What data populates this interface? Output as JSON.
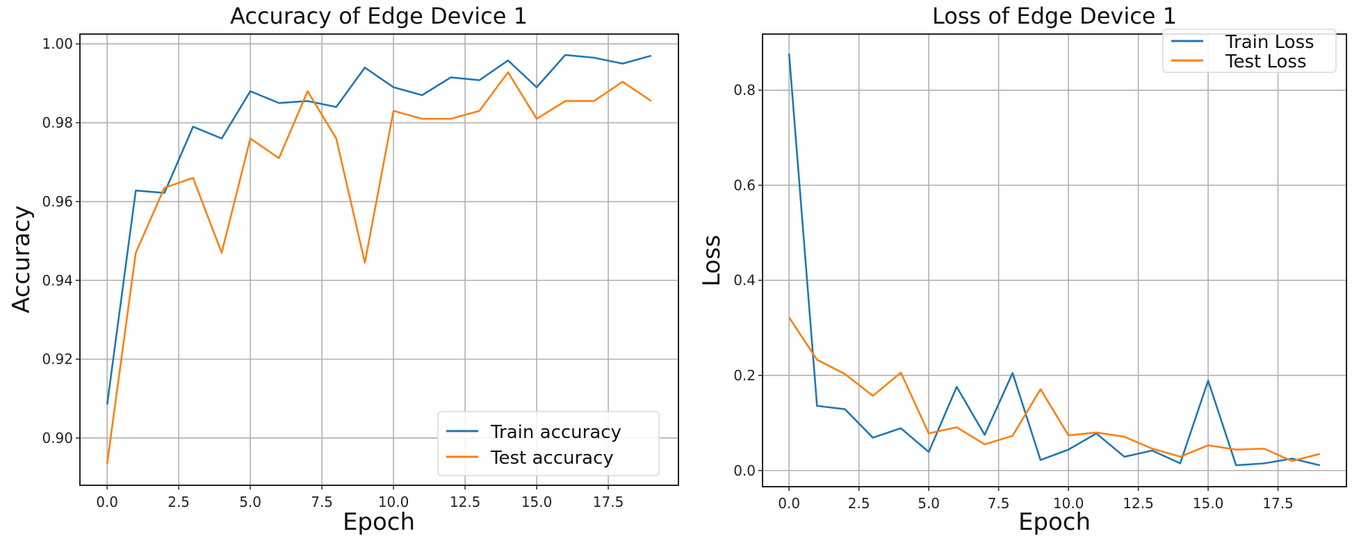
{
  "chart_data": [
    {
      "type": "line",
      "title": "Accuracy of Edge Device 1",
      "xlabel": "Epoch",
      "ylabel": "Accuracy",
      "xlim": [
        -0.95,
        19.95
      ],
      "ylim": [
        0.888,
        1.0025
      ],
      "xticks": [
        0,
        2.5,
        5,
        7.5,
        10,
        12.5,
        15,
        17.5
      ],
      "xtick_labels": [
        "0.0",
        "2.5",
        "5.0",
        "7.5",
        "10.0",
        "12.5",
        "15.0",
        "17.5"
      ],
      "yticks": [
        0.9,
        0.92,
        0.94,
        0.96,
        0.98,
        1.0
      ],
      "ytick_labels": [
        "0.90",
        "0.92",
        "0.94",
        "0.96",
        "0.98",
        "1.00"
      ],
      "grid": true,
      "legend_position": "bottom-right",
      "x": [
        0,
        1,
        2,
        3,
        4,
        5,
        6,
        7,
        8,
        9,
        10,
        11,
        12,
        13,
        14,
        15,
        16,
        17,
        18,
        19
      ],
      "series": [
        {
          "name": "Train accuracy",
          "color": "#1f77b4",
          "values": [
            0.9085,
            0.9628,
            0.9622,
            0.979,
            0.976,
            0.988,
            0.985,
            0.9855,
            0.984,
            0.994,
            0.989,
            0.987,
            0.9915,
            0.9908,
            0.9958,
            0.989,
            0.9972,
            0.9965,
            0.995,
            0.997
          ]
        },
        {
          "name": "Test accuracy",
          "color": "#ff7f0e",
          "values": [
            0.8935,
            0.947,
            0.9635,
            0.966,
            0.947,
            0.976,
            0.971,
            0.988,
            0.976,
            0.9445,
            0.983,
            0.981,
            0.981,
            0.983,
            0.9928,
            0.981,
            0.9855,
            0.9855,
            0.9904,
            0.9855
          ]
        }
      ]
    },
    {
      "type": "line",
      "title": "Loss of Edge Device 1",
      "xlabel": "Epoch",
      "ylabel": "Loss",
      "xlim": [
        -0.95,
        19.95
      ],
      "ylim": [
        -0.034,
        0.918
      ],
      "xticks": [
        0,
        2.5,
        5,
        7.5,
        10,
        12.5,
        15,
        17.5
      ],
      "xtick_labels": [
        "0.0",
        "2.5",
        "5.0",
        "7.5",
        "10.0",
        "12.5",
        "15.0",
        "17.5"
      ],
      "yticks": [
        0.0,
        0.2,
        0.4,
        0.6,
        0.8
      ],
      "ytick_labels": [
        "0.0",
        "0.2",
        "0.4",
        "0.6",
        "0.8"
      ],
      "grid": true,
      "legend_position": "top-right",
      "x": [
        0,
        1,
        2,
        3,
        4,
        5,
        6,
        7,
        8,
        9,
        10,
        11,
        12,
        13,
        14,
        15,
        16,
        17,
        18,
        19
      ],
      "series": [
        {
          "name": "Train Loss",
          "color": "#1f77b4",
          "values": [
            0.877,
            0.136,
            0.129,
            0.069,
            0.089,
            0.039,
            0.176,
            0.075,
            0.205,
            0.022,
            0.044,
            0.078,
            0.029,
            0.042,
            0.015,
            0.189,
            0.011,
            0.015,
            0.025,
            0.011
          ]
        },
        {
          "name": "Test Loss",
          "color": "#ff7f0e",
          "values": [
            0.322,
            0.233,
            0.203,
            0.157,
            0.206,
            0.078,
            0.091,
            0.055,
            0.073,
            0.171,
            0.074,
            0.08,
            0.071,
            0.046,
            0.029,
            0.053,
            0.044,
            0.046,
            0.02,
            0.035
          ]
        }
      ]
    }
  ]
}
